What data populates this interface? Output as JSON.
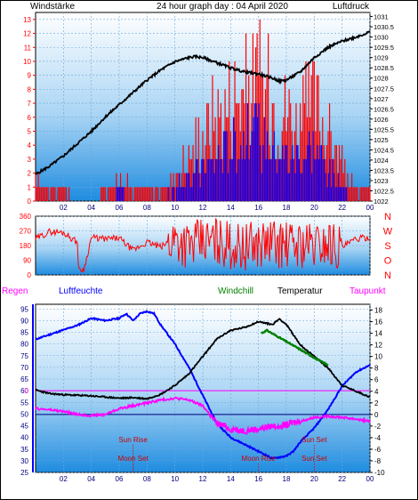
{
  "header": {
    "left": "Windstärke",
    "center": "24 hour graph day : 04 April 2020",
    "right": "Luftdruck"
  },
  "colors": {
    "red": "#ff0000",
    "blue": "#0000ff",
    "black": "#000000",
    "magenta": "#ff00ff",
    "green": "#008000",
    "navy": "#000080",
    "darkred": "#cc0000",
    "bg_top": "#ffffff",
    "bg_bottom": "#1e8ce0"
  },
  "x_hour_ticks": [
    "02",
    "04",
    "06",
    "08",
    "10",
    "12",
    "14",
    "16",
    "18",
    "20",
    "22",
    "00"
  ],
  "chart_data": [
    {
      "type": "line",
      "name": "wind-pressure",
      "left_axis": {
        "label": "Windstärke",
        "ticks": [
          0,
          1,
          2,
          3,
          4,
          5,
          6,
          7,
          8,
          9,
          10,
          11,
          12,
          13
        ],
        "ylim": [
          0,
          13.5
        ]
      },
      "right_axis": {
        "label": "Luftdruck",
        "ticks": [
          "1031",
          "1030.5",
          "1030",
          "1029.5",
          "1029",
          "1028.5",
          "1028",
          "1027.5",
          "1027",
          "1026.5",
          "1026",
          "1025.5",
          "1025",
          "1024.5",
          "1024",
          "1023.5",
          "1023",
          "1022.5",
          "1022"
        ],
        "ylim": [
          1022,
          1031.2
        ]
      },
      "series": [
        {
          "name": "Luftdruck",
          "color": "black",
          "axis": "right",
          "x": [
            0,
            1,
            2,
            3,
            4,
            5,
            6,
            7,
            8,
            9,
            10,
            11,
            11.5,
            12,
            13,
            14,
            15,
            16,
            17,
            17.5,
            18,
            19,
            20,
            21,
            22,
            23,
            24
          ],
          "y": [
            1023.3,
            1023.7,
            1024.2,
            1024.8,
            1025.4,
            1026.1,
            1026.7,
            1027.3,
            1027.9,
            1028.4,
            1028.8,
            1029.0,
            1029.05,
            1029.0,
            1028.75,
            1028.5,
            1028.3,
            1028.2,
            1028.0,
            1027.85,
            1027.9,
            1028.3,
            1029.0,
            1029.5,
            1029.8,
            1030.0,
            1030.25
          ]
        },
        {
          "name": "Wind gust",
          "color": "red",
          "axis": "left",
          "x": [
            0,
            1,
            2,
            3,
            4,
            5,
            6,
            7,
            8,
            9,
            10,
            11,
            12,
            13,
            14,
            15,
            16,
            17,
            18,
            19,
            20,
            21,
            22,
            23,
            24
          ],
          "y": [
            2,
            1,
            1,
            0,
            0,
            1,
            2,
            1,
            1,
            1,
            2,
            4,
            6,
            8,
            9,
            10,
            11,
            9,
            8,
            7,
            9,
            6,
            3,
            1,
            1
          ]
        },
        {
          "name": "Wind speed",
          "color": "blue",
          "axis": "left",
          "x": [
            0,
            1,
            2,
            3,
            4,
            5,
            6,
            7,
            8,
            9,
            10,
            11,
            12,
            13,
            14,
            15,
            16,
            17,
            18,
            19,
            20,
            21,
            22,
            23,
            24
          ],
          "y": [
            0,
            0,
            0,
            0,
            0,
            0,
            1,
            0,
            0,
            0,
            1,
            2,
            3,
            4,
            5,
            6,
            6,
            5,
            4,
            4,
            5,
            3,
            1,
            0,
            0
          ]
        }
      ]
    },
    {
      "type": "line",
      "name": "wind-direction",
      "left_axis": {
        "ticks": [
          0,
          90,
          180,
          270,
          360
        ],
        "ylim": [
          0,
          360
        ]
      },
      "right_labels": [
        "N",
        "W",
        "S",
        "O",
        "N"
      ],
      "series": [
        {
          "name": "Wind direction",
          "color": "red",
          "x": [
            0,
            1,
            2,
            3,
            3.1,
            3.5,
            4,
            5,
            6,
            7,
            8,
            9,
            10,
            11,
            12,
            13,
            14,
            15,
            16,
            17,
            18,
            19,
            20,
            21,
            22,
            23,
            24
          ],
          "y": [
            220,
            265,
            260,
            200,
            20,
            40,
            230,
            220,
            225,
            150,
            200,
            170,
            230,
            180,
            200,
            210,
            180,
            170,
            190,
            200,
            180,
            190,
            180,
            200,
            170,
            220,
            230
          ]
        }
      ]
    },
    {
      "type": "line",
      "name": "humidity-temperature",
      "legend": [
        "Regen",
        "Luftfeuchte",
        "Windchill",
        "Temperatur",
        "Taupunkt"
      ],
      "left_axis": {
        "ticks": [
          25,
          30,
          35,
          40,
          45,
          50,
          55,
          60,
          65,
          70,
          75,
          80,
          85,
          90,
          95
        ],
        "ylim": [
          25,
          97
        ]
      },
      "right_axis": {
        "ticks": [
          -10,
          -8,
          -6,
          -4,
          -2,
          0,
          2,
          4,
          6,
          8,
          10,
          12,
          14,
          16,
          18
        ],
        "ylim": [
          -10,
          19
        ]
      },
      "rain_marker": "0",
      "series": [
        {
          "name": "Luftfeuchte",
          "color": "blue",
          "axis": "left",
          "x": [
            0,
            1,
            2,
            3,
            4,
            5,
            6,
            6.5,
            7,
            7.5,
            8,
            8.5,
            9,
            10,
            11,
            12,
            13,
            14,
            15,
            16,
            17,
            18,
            18.5,
            19,
            20,
            21,
            22,
            23,
            24
          ],
          "y": [
            82,
            84,
            86,
            88,
            91,
            90,
            91,
            93,
            90,
            93,
            94,
            93,
            88,
            80,
            70,
            58,
            46,
            40,
            37,
            34,
            31,
            32,
            34,
            38,
            44,
            52,
            62,
            68,
            71
          ]
        },
        {
          "name": "Temperatur",
          "color": "black",
          "axis": "right",
          "x": [
            0,
            1,
            2,
            3,
            4,
            5,
            6,
            7,
            8,
            9,
            10,
            11,
            12,
            13,
            14,
            15,
            16,
            17,
            17.5,
            18,
            19,
            20,
            21,
            22,
            23,
            24
          ],
          "y": [
            4.2,
            3.6,
            3.4,
            3.3,
            3.2,
            3.0,
            2.8,
            2.9,
            2.7,
            3.5,
            5,
            7,
            10,
            13,
            14.5,
            15,
            16,
            15.5,
            16.5,
            15.5,
            12,
            10,
            8,
            5,
            4,
            3
          ]
        },
        {
          "name": "Windchill",
          "color": "green",
          "axis": "right",
          "x": [
            16.2,
            16.6,
            19.5,
            20.2,
            21
          ],
          "y": [
            14,
            14.5,
            10.5,
            9.5,
            8.5
          ]
        },
        {
          "name": "Taupunkt",
          "color": "magenta",
          "axis": "right",
          "x": [
            0,
            1,
            2,
            3,
            4,
            5,
            6,
            7,
            8,
            9,
            10,
            11,
            12,
            12.5,
            13,
            14,
            15,
            16,
            17,
            18,
            19,
            20,
            21,
            22,
            23,
            24
          ],
          "y": [
            1,
            0.8,
            0.5,
            0,
            -0.2,
            0,
            1,
            1.5,
            2,
            2.5,
            2.8,
            2.5,
            1.5,
            0,
            -1.5,
            -2.5,
            -2.8,
            -2.5,
            -2,
            -1.8,
            -1.2,
            -0.5,
            -0.3,
            -0.5,
            -0.8,
            -1.2
          ]
        }
      ],
      "annotations": [
        {
          "text": "Sun Rise",
          "x": 7,
          "row": "upper"
        },
        {
          "text": "Sun Set",
          "x": 20,
          "row": "upper"
        },
        {
          "text": "Moon Set",
          "x": 7,
          "row": "lower"
        },
        {
          "text": "Moon Rise",
          "x": 16,
          "row": "lower"
        },
        {
          "text": "Sun Set",
          "x": 20,
          "row": "lower"
        }
      ]
    }
  ]
}
